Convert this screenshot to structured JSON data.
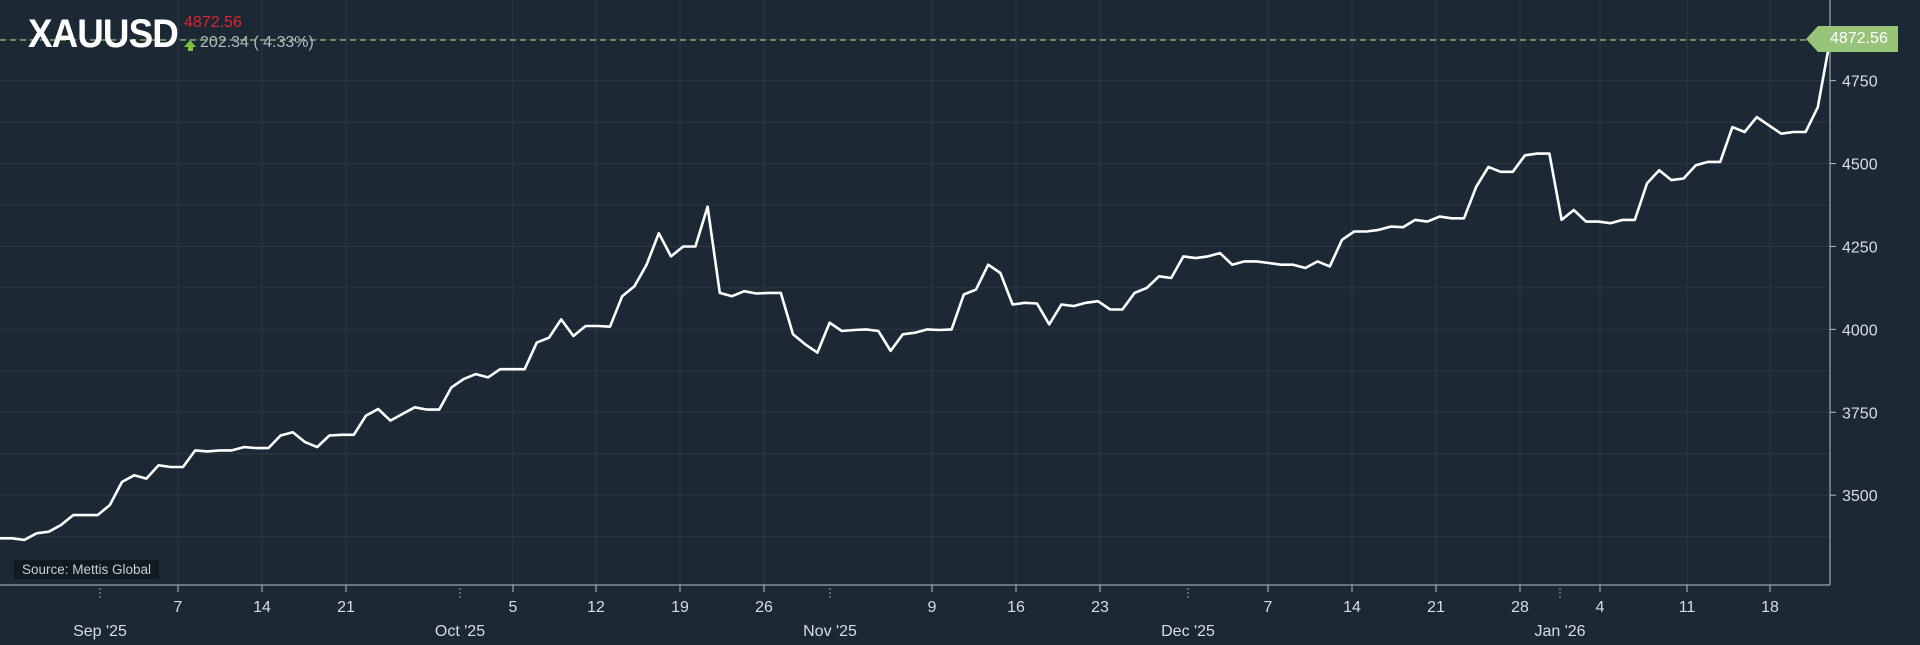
{
  "header": {
    "symbol": "XAUUSD",
    "last_price": "4872.56",
    "change_text": "202.34 ( 4.33%)",
    "change_direction": "up",
    "up_color": "#7fc241",
    "price_color": "#e0232f"
  },
  "source_label": "Source: Mettis Global",
  "price_tag": "4872.56",
  "colors": {
    "background": "#1c2935",
    "line": "#ffffff",
    "grid": "#2a3845",
    "dashed_last": "#98c47a",
    "axis_text": "#d8dde2"
  },
  "chart_data": {
    "type": "line",
    "title": "XAUUSD",
    "xlabel": "",
    "ylabel": "",
    "ylim": [
      3300,
      4880
    ],
    "yticks": [
      3500,
      3750,
      4000,
      4250,
      4500,
      4750
    ],
    "grid": true,
    "axis_position": "right",
    "last_value": 4872.56,
    "x_day_ticks": [
      {
        "label": "7",
        "index": 5
      },
      {
        "label": "14",
        "index": 10
      },
      {
        "label": "21",
        "index": 15
      },
      {
        "label": "5",
        "index": 25
      },
      {
        "label": "12",
        "index": 30
      },
      {
        "label": "19",
        "index": 35
      },
      {
        "label": "26",
        "index": 40
      },
      {
        "label": "9",
        "index": 50
      },
      {
        "label": "16",
        "index": 55
      },
      {
        "label": "23",
        "index": 60
      },
      {
        "label": "7",
        "index": 70
      },
      {
        "label": "14",
        "index": 75
      },
      {
        "label": "21",
        "index": 80
      },
      {
        "label": "28",
        "index": 85
      },
      {
        "label": "4",
        "index": 88
      },
      {
        "label": "11",
        "index": 93
      },
      {
        "label": "18",
        "index": 98
      }
    ],
    "x_month_ticks": [
      {
        "label": "Sep '25",
        "index": 1
      },
      {
        "label": "Oct '25",
        "index": 22
      },
      {
        "label": "Nov '25",
        "index": 44
      },
      {
        "label": "Dec '25",
        "index": 66
      },
      {
        "label": "Jan '26",
        "index": 86.5
      }
    ],
    "series": [
      {
        "values": [
          3370,
          3370,
          3365,
          3385,
          3390,
          3410,
          3440,
          3440,
          3440,
          3470,
          3540,
          3560,
          3550,
          3590,
          3585,
          3585,
          3635,
          3632,
          3635,
          3635,
          3645,
          3642,
          3642,
          3680,
          3690,
          3660,
          3645,
          3680,
          3682,
          3682,
          3740,
          3760,
          3725,
          3745,
          3765,
          3758,
          3758,
          3825,
          3850,
          3865,
          3855,
          3880,
          3880,
          3880,
          3960,
          3975,
          4030,
          3980,
          4010,
          4010,
          4008,
          4100,
          4130,
          4195,
          4290,
          4220,
          4250,
          4250,
          4370,
          4110,
          4100,
          4115,
          4108,
          4110,
          4110,
          3985,
          3955,
          3930,
          4020,
          3995,
          3998,
          4000,
          3995,
          3935,
          3985,
          3990,
          4000,
          3998,
          4000,
          4105,
          4120,
          4195,
          4170,
          4075,
          4080,
          4078,
          4015,
          4075,
          4070,
          4080,
          4085,
          4060,
          4060,
          4110,
          4125,
          4160,
          4155,
          4220,
          4215,
          4220,
          4230,
          4195,
          4205,
          4205,
          4200,
          4195,
          4195,
          4185,
          4205,
          4190,
          4270,
          4295,
          4295,
          4300,
          4310,
          4308,
          4330,
          4325,
          4340,
          4335,
          4335,
          4430,
          4490,
          4475,
          4475,
          4525,
          4530,
          4530,
          4330,
          4360,
          4325,
          4325,
          4320,
          4330,
          4330,
          4440,
          4480,
          4450,
          4455,
          4495,
          4505,
          4505,
          4610,
          4595,
          4640,
          4615,
          4590,
          4595,
          4595,
          4670,
          4872.56
        ]
      }
    ]
  }
}
